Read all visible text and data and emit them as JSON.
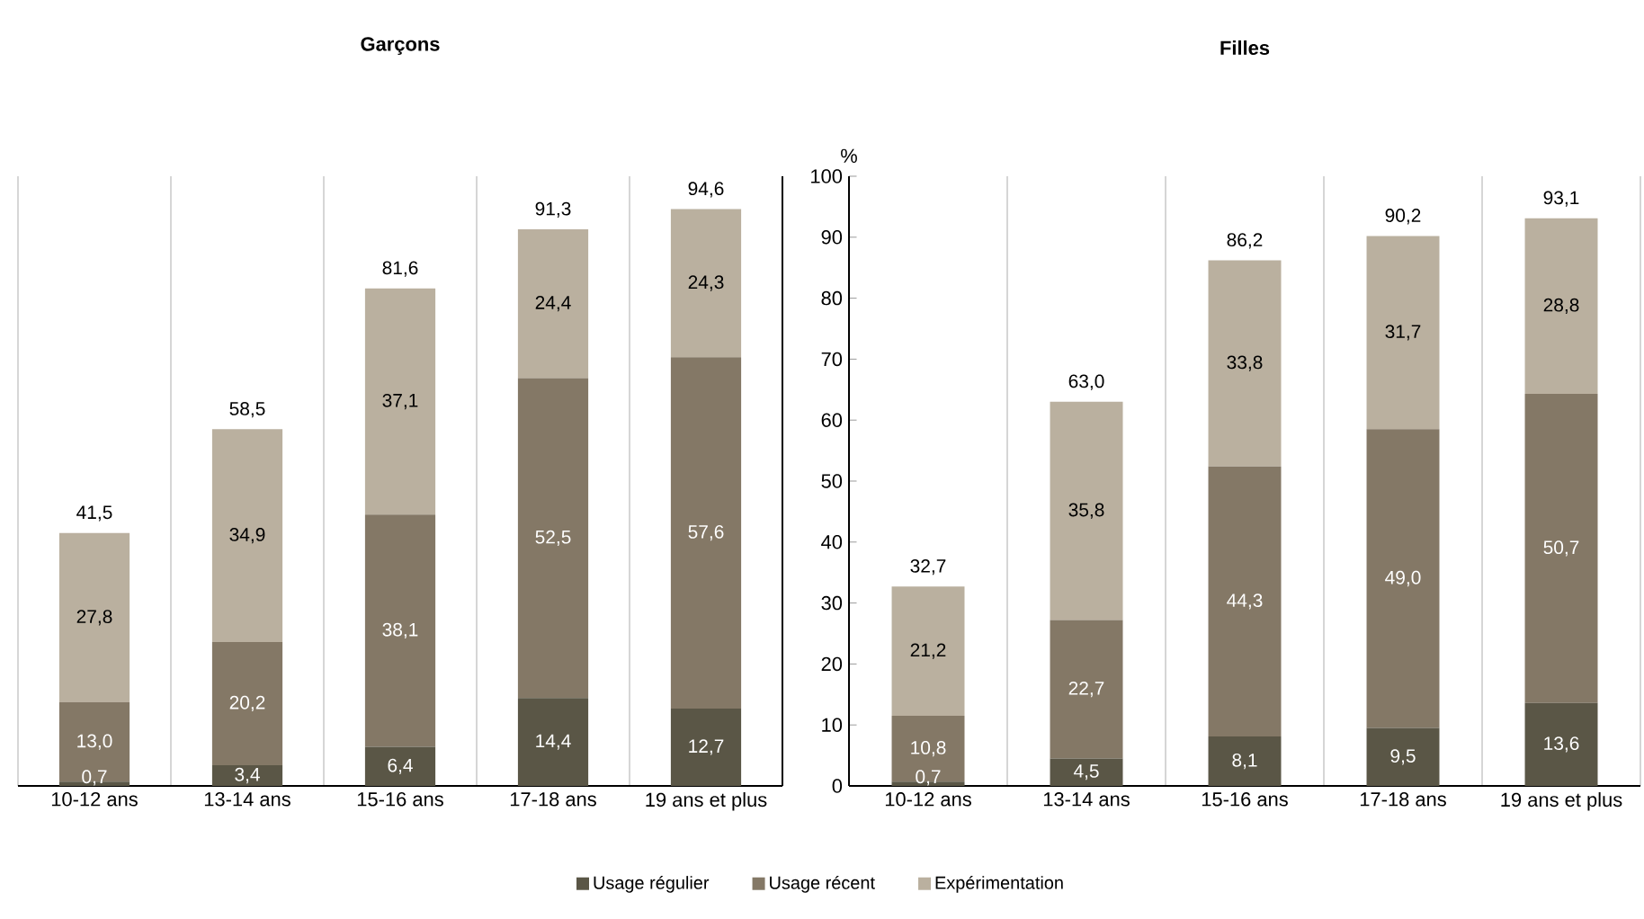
{
  "chart_data": [
    {
      "type": "bar",
      "title": "Garçons",
      "stacked": true,
      "categories": [
        "10-12 ans",
        "13-14 ans",
        "15-16 ans",
        "17-18 ans",
        "19 ans et plus"
      ],
      "ylim": [
        0,
        100
      ],
      "tick_labels": "x",
      "grid": "x",
      "legend": "bottom",
      "series": [
        {
          "name": "Usage régulier",
          "color": "#5a5646",
          "values": [
            0.7,
            3.4,
            6.4,
            14.4,
            12.7
          ],
          "value_labels": [
            "0,7",
            "3,4",
            "6,4",
            "14,4",
            "12,7"
          ]
        },
        {
          "name": "Usage récent",
          "color": "#847866",
          "values": [
            13.0,
            20.2,
            38.1,
            52.5,
            57.6
          ],
          "value_labels": [
            "13,0",
            "20,2",
            "38,1",
            "52,5",
            "57,6"
          ]
        },
        {
          "name": "Expérimentation",
          "color": "#bab09f",
          "values": [
            27.8,
            34.9,
            37.1,
            24.4,
            24.3
          ],
          "value_labels": [
            "27,8",
            "34,9",
            "37,1",
            "24,4",
            "24,3"
          ]
        }
      ],
      "totals": [
        "41,5",
        "58,5",
        "81,6",
        "91,3",
        "94,6"
      ]
    },
    {
      "type": "bar",
      "title": "Filles",
      "ylabel": "%",
      "stacked": true,
      "categories": [
        "10-12 ans",
        "13-14 ans",
        "15-16 ans",
        "17-18 ans",
        "19 ans et plus"
      ],
      "ylim": [
        0,
        100
      ],
      "yticks": [
        0,
        10,
        20,
        30,
        40,
        50,
        60,
        70,
        80,
        90,
        100
      ],
      "grid": "x",
      "series": [
        {
          "color": "#5a5646",
          "values": [
            0.7,
            4.5,
            8.1,
            9.5,
            13.6
          ],
          "value_labels": [
            "0,7",
            "4,5",
            "8,1",
            "9,5",
            "13,6"
          ]
        },
        {
          "color": "#847866",
          "values": [
            10.8,
            22.7,
            44.3,
            49.0,
            50.7
          ],
          "value_labels": [
            "10,8",
            "22,7",
            "44,3",
            "49,0",
            "50,7"
          ]
        },
        {
          "color": "#bab09f",
          "values": [
            21.2,
            35.8,
            33.8,
            31.7,
            28.8
          ],
          "value_labels": [
            "21,2",
            "35,8",
            "33,8",
            "31,7",
            "28,8"
          ]
        }
      ],
      "totals": [
        "32,7",
        "63,0",
        "86,2",
        "90,2",
        "93,1"
      ]
    }
  ]
}
